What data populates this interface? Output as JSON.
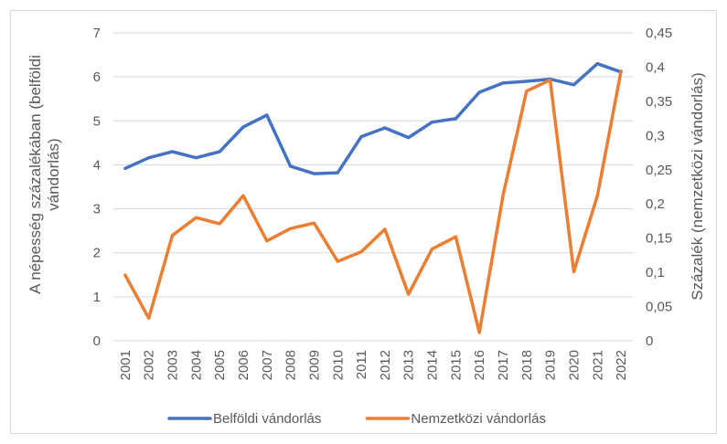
{
  "chart_data": {
    "type": "line",
    "ylabel": "A népesség százalékában (belföldi vándorlás)",
    "y2label": "Százalék (nemzetközi vándorlás)",
    "categories": [
      "2001",
      "2002",
      "2003",
      "2004",
      "2005",
      "2006",
      "2007",
      "2008",
      "2009",
      "2010",
      "2011",
      "2012",
      "2013",
      "2014",
      "2015",
      "2016",
      "2017",
      "2018",
      "2019",
      "2020",
      "2021",
      "2022"
    ],
    "series": [
      {
        "name": "Belföldi vándorlás",
        "color": "#4472c4",
        "axis": "y",
        "values": [
          3.92,
          4.16,
          4.3,
          4.16,
          4.3,
          4.86,
          5.13,
          3.97,
          3.8,
          3.82,
          4.64,
          4.84,
          4.62,
          4.97,
          5.05,
          5.65,
          5.86,
          5.9,
          5.95,
          5.82,
          6.3,
          6.11
        ]
      },
      {
        "name": "Nemzetközi vándorlás",
        "color": "#ed7d31",
        "axis": "y2",
        "values": [
          0.096,
          0.033,
          0.154,
          0.18,
          0.171,
          0.212,
          0.146,
          0.164,
          0.172,
          0.116,
          0.13,
          0.163,
          0.068,
          0.134,
          0.152,
          0.012,
          0.212,
          0.365,
          0.381,
          0.101,
          0.212,
          0.394
        ]
      }
    ],
    "ylim": [
      0,
      7
    ],
    "yticks": [
      0,
      1,
      2,
      3,
      4,
      5,
      6,
      7
    ],
    "y2lim": [
      0,
      0.45
    ],
    "y2ticks": [
      0,
      {
        "value": 0.05,
        "label": "0,05"
      },
      {
        "value": 0.1,
        "label": "0,1"
      },
      {
        "value": 0.15,
        "label": "0,15"
      },
      {
        "value": 0.2,
        "label": "0,2"
      },
      {
        "value": 0.25,
        "label": "0,25"
      },
      {
        "value": 0.3,
        "label": "0,3"
      },
      {
        "value": 0.35,
        "label": "0,35"
      },
      {
        "value": 0.4,
        "label": "0,4"
      },
      {
        "value": 0.45,
        "label": "0,45"
      }
    ],
    "grid": true,
    "legend": "bottom"
  }
}
